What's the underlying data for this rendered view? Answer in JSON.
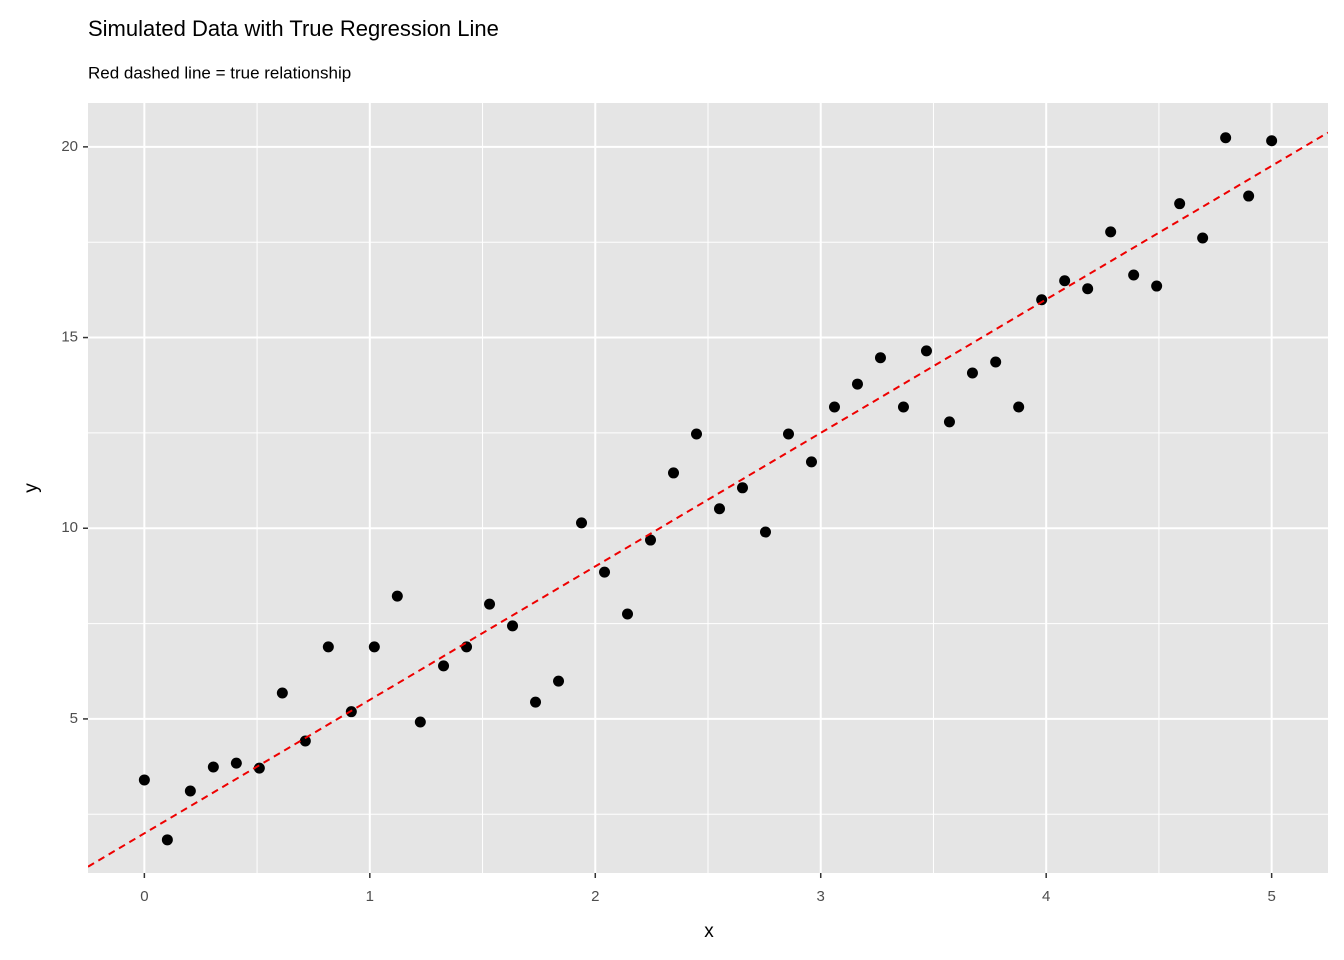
{
  "chart_data": {
    "type": "scatter",
    "title": "Simulated Data with True Regression Line",
    "subtitle": "Red dashed line = true relationship",
    "x_label": "x",
    "y_label": "y",
    "x": [
      0,
      0.102,
      0.204,
      0.306,
      0.408,
      0.51,
      0.612,
      0.714,
      0.816,
      0.918,
      1.02,
      1.122,
      1.224,
      1.327,
      1.429,
      1.531,
      1.633,
      1.735,
      1.837,
      1.939,
      2.041,
      2.143,
      2.245,
      2.347,
      2.449,
      2.551,
      2.653,
      2.755,
      2.857,
      2.959,
      3.061,
      3.163,
      3.265,
      3.367,
      3.469,
      3.571,
      3.673,
      3.776,
      3.878,
      3.98,
      4.082,
      4.184,
      4.286,
      4.388,
      4.49,
      4.592,
      4.694,
      4.796,
      4.898,
      5
    ],
    "values": [
      3.4,
      1.83,
      3.11,
      3.74,
      3.84,
      3.71,
      5.68,
      4.42,
      6.89,
      5.19,
      6.89,
      8.22,
      4.92,
      6.39,
      6.89,
      8.01,
      7.44,
      5.44,
      5.99,
      10.14,
      8.85,
      7.75,
      9.69,
      11.45,
      12.47,
      10.51,
      11.06,
      9.9,
      12.47,
      11.74,
      13.18,
      13.78,
      14.47,
      13.18,
      14.65,
      12.79,
      14.07,
      14.36,
      13.18,
      15.99,
      16.49,
      16.28,
      17.77,
      16.64,
      16.35,
      18.51,
      17.61,
      20.24,
      18.71,
      20.16
    ],
    "color": "#000000",
    "abline": {
      "intercept": 2,
      "slope": 3.5,
      "color": "#ee0000"
    },
    "xlim": [
      -0.25,
      5.25
    ],
    "ylim": [
      0.96,
      21.15
    ],
    "xticks": [
      0,
      1,
      2,
      3,
      4,
      5
    ],
    "yticks": [
      5,
      10,
      15,
      20
    ],
    "grid": true
  }
}
